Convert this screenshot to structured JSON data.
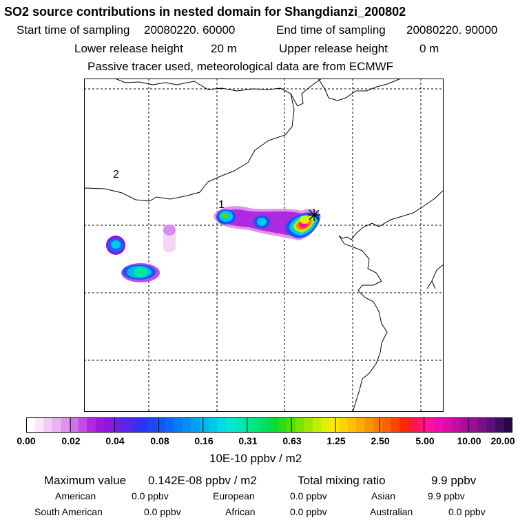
{
  "header": {
    "title": "SO2 source contributions in nested domain for Shangdianzi_200802",
    "start_label": "Start time of sampling",
    "start_value": "20080220. 60000",
    "end_label": "End time of sampling",
    "end_value": "20080220. 90000",
    "lower_label": "Lower release height",
    "lower_value": "20 m",
    "upper_label": "Upper release height",
    "upper_value": "0 m",
    "tracer_note": "Passive tracer used, meteorological data are from ECMWF"
  },
  "map": {
    "region_labels": [
      "1",
      "2"
    ],
    "receptor_symbol": "receptor-star"
  },
  "colorbar": {
    "unit_label": "10E-10 ppbv / m2",
    "tick_labels": [
      "0.00",
      "0.02",
      "0.04",
      "0.08",
      "0.16",
      "0.31",
      "0.63",
      "1.25",
      "2.50",
      "5.00",
      "10.00",
      "20.00"
    ],
    "colors": [
      "#ffffff",
      "#fbe6fb",
      "#f3ccf6",
      "#eab2f2",
      "#df92ee",
      "#d26fea",
      "#c24ce6",
      "#ad2ae0",
      "#9b18df",
      "#8a18e4",
      "#6f1ee8",
      "#5a24ea",
      "#402bf0",
      "#2a34f6",
      "#1c46fa",
      "#1256fc",
      "#0a68fc",
      "#067cf8",
      "#038ef4",
      "#00a2f0",
      "#00b6ea",
      "#00c8e8",
      "#00dce2",
      "#00e8d4",
      "#00e8b8",
      "#00e89a",
      "#00e47c",
      "#00e05c",
      "#08dc3c",
      "#28dc18",
      "#50e000",
      "#78e400",
      "#a0e800",
      "#c4ec00",
      "#e4ee00",
      "#fce800",
      "#fcd400",
      "#fcc000",
      "#fcac00",
      "#fc9400",
      "#fc7c00",
      "#fc6000",
      "#fc4400",
      "#fc2800",
      "#fc1840",
      "#fc1478",
      "#fc10a0",
      "#f00cb0",
      "#dc0cac",
      "#c40ca4",
      "#ac0c9c",
      "#941094",
      "#7c1088",
      "#60107c",
      "#440c64",
      "#2a0848"
    ]
  },
  "stats": {
    "max_label": "Maximum value",
    "max_value": "0.142E-08 ppbv / m2",
    "total_label": "Total mixing ratio",
    "total_value": "9.9 ppbv",
    "regions": [
      {
        "name": "American",
        "value": "0.0 ppbv"
      },
      {
        "name": "European",
        "value": "0.0 ppbv"
      },
      {
        "name": "Asian",
        "value": "9.9 ppbv"
      },
      {
        "name": "South American",
        "value": "0.0 ppbv"
      },
      {
        "name": "African",
        "value": "0.0 ppbv"
      },
      {
        "name": "Australian",
        "value": "0.0 ppbv"
      }
    ]
  }
}
